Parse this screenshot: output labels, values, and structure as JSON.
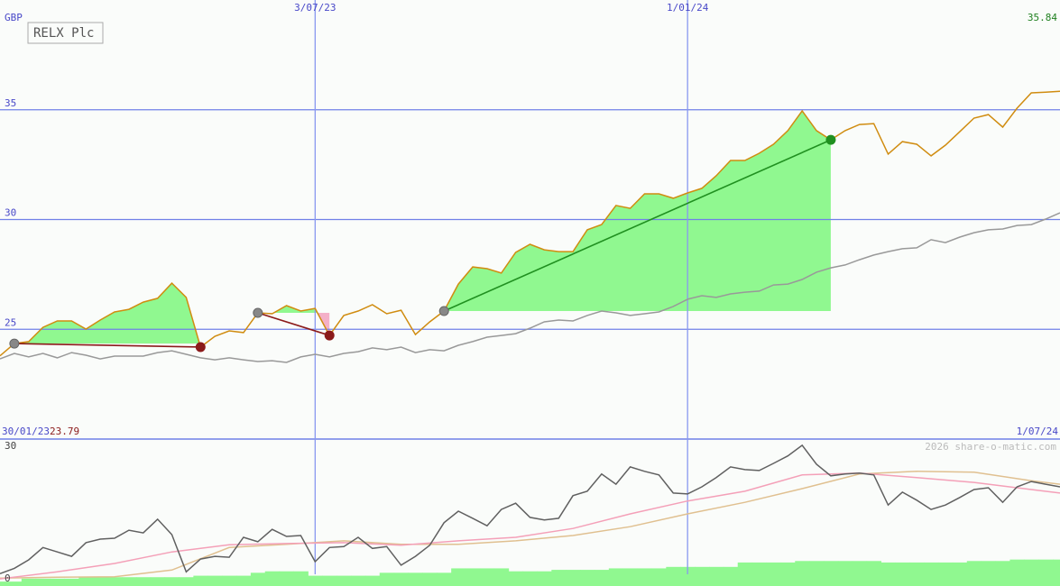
{
  "chart_data": [
    {
      "type": "line",
      "title": "RELX Plc",
      "y_label": "GBP",
      "x": [
        0,
        1,
        2,
        3,
        4,
        5,
        6,
        7,
        8,
        9,
        10,
        11,
        12,
        13,
        14,
        15,
        16,
        17,
        18,
        19,
        20,
        21,
        22,
        23,
        24,
        25,
        26,
        27,
        28,
        29,
        30,
        31,
        32,
        33,
        34,
        35,
        36,
        37,
        38,
        39,
        40,
        41,
        42,
        43,
        44,
        45,
        46,
        47,
        48,
        49,
        50,
        51,
        52,
        53,
        54,
        55,
        56,
        57,
        58,
        59,
        60,
        61,
        62,
        63,
        64,
        65,
        66,
        67,
        68,
        69,
        70,
        71,
        72,
        73,
        74
      ],
      "xlim": [
        0,
        74
      ],
      "xticks": [
        {
          "value": 0,
          "label": "30/01/23"
        },
        {
          "value": 22,
          "label": "3/07/23"
        },
        {
          "value": 48,
          "label": "1/01/24"
        },
        {
          "value": 74,
          "label": "1/07/24"
        }
      ],
      "ylim": [
        20,
        40
      ],
      "yticks": [
        25,
        30,
        35
      ],
      "grid": true,
      "series": [
        {
          "color": "#d08c10",
          "values": [
            23.79,
            24.35,
            24.44,
            25.09,
            25.38,
            25.38,
            25.01,
            25.42,
            25.79,
            25.91,
            26.24,
            26.41,
            27.1,
            26.45,
            24.19,
            24.68,
            24.93,
            24.85,
            25.75,
            25.71,
            26.08,
            25.83,
            25.95,
            24.72,
            25.63,
            25.83,
            26.12,
            25.71,
            25.87,
            24.76,
            25.34,
            25.83,
            27.06,
            27.84,
            27.76,
            27.56,
            28.5,
            28.87,
            28.62,
            28.54,
            28.54,
            29.53,
            29.77,
            30.64,
            30.51,
            31.17,
            31.17,
            30.97,
            31.21,
            31.42,
            31.99,
            32.69,
            32.69,
            33.02,
            33.43,
            34.05,
            34.95,
            34.05,
            33.63,
            34.05,
            34.33,
            34.37,
            32.98,
            33.55,
            33.43,
            32.9,
            33.39,
            34.0,
            34.62,
            34.78,
            34.21,
            35.07,
            35.77,
            35.8,
            35.84
          ]
        },
        {
          "color": "#999999",
          "values": [
            23.65,
            23.9,
            23.74,
            23.9,
            23.7,
            23.94,
            23.82,
            23.65,
            23.78,
            23.78,
            23.78,
            23.94,
            24.02,
            23.86,
            23.7,
            23.61,
            23.7,
            23.61,
            23.53,
            23.57,
            23.49,
            23.74,
            23.86,
            23.74,
            23.9,
            23.98,
            24.15,
            24.07,
            24.19,
            23.94,
            24.07,
            24.02,
            24.27,
            24.44,
            24.64,
            24.72,
            24.8,
            25.05,
            25.34,
            25.42,
            25.38,
            25.63,
            25.83,
            25.75,
            25.63,
            25.71,
            25.79,
            26.04,
            26.37,
            26.53,
            26.45,
            26.61,
            26.69,
            26.74,
            27.02,
            27.06,
            27.27,
            27.6,
            27.8,
            27.93,
            28.17,
            28.38,
            28.54,
            28.67,
            28.71,
            29.08,
            28.95,
            29.2,
            29.4,
            29.53,
            29.57,
            29.73,
            29.77,
            30.02,
            30.31
          ]
        }
      ],
      "trades": [
        {
          "start": 1,
          "end": 14,
          "color": "#8b1a1a"
        },
        {
          "start": 18,
          "end": 23,
          "color": "#8b1a1a"
        },
        {
          "start": 31,
          "end": 58,
          "color": "#209020"
        }
      ]
    },
    {
      "type": "line",
      "annotation": "2026 share-o-matic.com",
      "x": [
        0,
        1,
        2,
        3,
        4,
        5,
        6,
        7,
        8,
        9,
        10,
        11,
        12,
        13,
        14,
        15,
        16,
        17,
        18,
        19,
        20,
        21,
        22,
        23,
        24,
        25,
        26,
        27,
        28,
        29,
        30,
        31,
        32,
        33,
        34,
        35,
        36,
        37,
        38,
        39,
        40,
        41,
        42,
        43,
        44,
        45,
        46,
        47,
        48,
        49,
        50,
        51,
        52,
        53,
        54,
        55,
        56,
        57,
        58,
        59,
        60,
        61,
        62,
        63,
        64,
        65,
        66,
        67,
        68,
        69,
        70,
        71,
        72,
        73,
        74
      ],
      "xlim": [
        0,
        74
      ],
      "ylim": [
        -1.6,
        31.6
      ],
      "yticks": [
        0,
        30
      ],
      "y2lim": [
        0,
        100
      ],
      "series": [
        {
          "color": "#90f890",
          "type": "bar",
          "axis": "y2",
          "values": [
            3,
            3,
            5,
            5,
            5,
            5,
            6,
            6,
            6,
            6,
            6,
            6,
            6,
            6,
            7,
            7,
            7,
            7,
            9,
            10,
            10,
            10,
            7,
            7,
            7,
            7,
            7,
            9,
            9,
            9,
            9,
            9,
            12,
            12,
            12,
            12,
            10,
            10,
            10,
            11,
            11,
            11,
            11,
            12,
            12,
            12,
            12,
            13,
            13,
            13,
            13,
            13,
            16,
            16,
            16,
            16,
            17,
            17,
            17,
            17,
            17,
            17,
            16,
            16,
            16,
            16,
            16,
            16,
            17,
            17,
            17,
            18,
            18,
            18,
            18
          ]
        },
        {
          "color": "#e0c090",
          "x": [
            0,
            4,
            8,
            12,
            16,
            20,
            24,
            28,
            32,
            36,
            40,
            44,
            48,
            52,
            56,
            60,
            64,
            68,
            72,
            74
          ],
          "values": [
            0.2,
            0.4,
            0.5,
            2.0,
            7.1,
            7.8,
            8.6,
            7.8,
            7.8,
            8.6,
            9.8,
            11.8,
            14.7,
            17.3,
            20.4,
            23.7,
            24.3,
            24.1,
            22.2,
            21.4
          ]
        },
        {
          "color": "#f4a0b8",
          "x": [
            0,
            4,
            8,
            12,
            16,
            20,
            24,
            28,
            32,
            36,
            40,
            44,
            48,
            52,
            56,
            60,
            64,
            68,
            72,
            74
          ],
          "values": [
            0,
            1.6,
            3.5,
            6.1,
            7.7,
            8.0,
            8.2,
            7.6,
            8.6,
            9.4,
            11.4,
            14.7,
            17.6,
            19.8,
            23.5,
            23.9,
            22.9,
            21.8,
            20.2,
            19.4
          ]
        },
        {
          "color": "#606060",
          "values": [
            1.2,
            2.4,
            4.3,
            7.1,
            6.1,
            5.1,
            8.2,
            9.0,
            9.2,
            11.0,
            10.4,
            13.5,
            10.0,
            1.6,
            4.5,
            5.1,
            4.9,
            9.4,
            8.4,
            11.2,
            9.6,
            9.8,
            3.9,
            7.1,
            7.3,
            9.4,
            6.9,
            7.3,
            3.1,
            5.1,
            7.6,
            12.7,
            15.3,
            13.7,
            12.0,
            15.7,
            17.1,
            13.9,
            13.3,
            13.7,
            18.8,
            19.8,
            23.7,
            21.4,
            25.3,
            24.3,
            23.5,
            19.4,
            19.2,
            20.8,
            22.9,
            25.3,
            24.7,
            24.5,
            26.1,
            27.8,
            30.2,
            25.9,
            23.3,
            23.7,
            23.9,
            23.5,
            16.7,
            19.6,
            17.8,
            15.7,
            16.7,
            18.4,
            20.2,
            20.6,
            17.3,
            20.8,
            22.0,
            21.4,
            20.8
          ]
        }
      ]
    }
  ]
}
